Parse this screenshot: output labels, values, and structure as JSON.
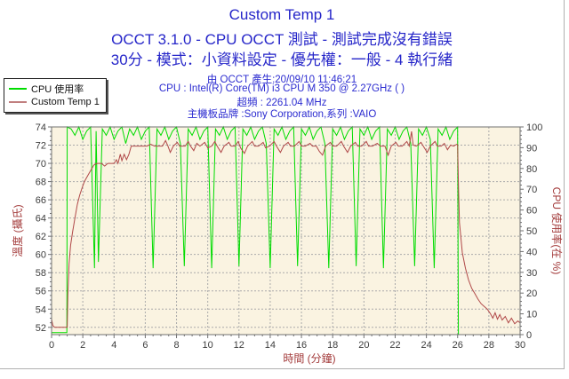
{
  "header": {
    "title": "Custom Temp 1",
    "subtitle1": "OCCT 3.1.0 - CPU OCCT 測試 - 測試完成沒有錯誤",
    "subtitle2": "30分 - 模式：小資料設定 - 優先權：一般 - 4 執行緒",
    "info_lines": {
      "0": "由 OCCT 產生:20/09/10 11:46:21",
      "1": "CPU : Intel(R) Core(TM) i3 CPU M 350 @ 2.27GHz (  )",
      "2": "超頻 : 2261.04 MHz",
      "3": "主機板品牌 :Sony Corporation,系列 :VAIO"
    },
    "title_color": "#2626c9"
  },
  "legend": {
    "items": [
      {
        "label": "CPU 使用率",
        "swatch_color": "#00dc00"
      },
      {
        "label": "Custom Temp 1",
        "swatch_color": "#c17f7f"
      }
    ]
  },
  "chart_data": {
    "type": "line",
    "title": "Custom Temp 1",
    "xlabel": "時間 (分鐘)",
    "ylabel_left": "溫度 (攝氏)",
    "ylabel_right": "CPU 使用率(在 %)",
    "xlim": [
      0,
      30
    ],
    "left_axis_range": [
      51.2,
      74
    ],
    "right_axis_range": [
      0,
      100
    ],
    "x_ticks": [
      0,
      2,
      4,
      6,
      8,
      10,
      12,
      14,
      16,
      18,
      20,
      22,
      24,
      26,
      28,
      30
    ],
    "left_ticks": [
      52,
      54,
      56,
      58,
      60,
      62,
      64,
      66,
      68,
      70,
      72,
      74
    ],
    "right_ticks": [
      0,
      10,
      20,
      30,
      40,
      50,
      60,
      70,
      80,
      90,
      100
    ],
    "grid": "dashed",
    "legend_position": "top-left",
    "colors": {
      "plot_bg": "#faf3e1",
      "grid": "#aaaaaa",
      "axis": "#707070",
      "tick_label": "#3c3c3c",
      "axis_title": "#a33b3b",
      "cpu_line": "#00dc00",
      "temp_line": "#b04848"
    },
    "series": [
      {
        "name": "CPU 使用率",
        "axis": "right",
        "color": "#00dc00",
        "points": [
          [
            0,
            1
          ],
          [
            0.98,
            1
          ],
          [
            1.0,
            100
          ],
          [
            1.25,
            99
          ],
          [
            1.5,
            96
          ],
          [
            1.75,
            100
          ],
          [
            2.0,
            94
          ],
          [
            2.25,
            98
          ],
          [
            2.5,
            100
          ],
          [
            2.75,
            32
          ],
          [
            2.85,
            98
          ],
          [
            3.0,
            35
          ],
          [
            3.25,
            99
          ],
          [
            3.5,
            96
          ],
          [
            3.75,
            100
          ],
          [
            4.0,
            94
          ],
          [
            4.25,
            98
          ],
          [
            4.5,
            100
          ],
          [
            4.75,
            92
          ],
          [
            5.0,
            99
          ],
          [
            5.25,
            96
          ],
          [
            5.5,
            100
          ],
          [
            5.75,
            94
          ],
          [
            6.0,
            98
          ],
          [
            6.25,
            100
          ],
          [
            6.5,
            32
          ],
          [
            6.75,
            99
          ],
          [
            7.0,
            96
          ],
          [
            7.25,
            100
          ],
          [
            7.5,
            94
          ],
          [
            7.75,
            98
          ],
          [
            8.0,
            100
          ],
          [
            8.25,
            92
          ],
          [
            8.5,
            33
          ],
          [
            8.75,
            99
          ],
          [
            9.0,
            96
          ],
          [
            9.25,
            100
          ],
          [
            9.5,
            94
          ],
          [
            9.75,
            98
          ],
          [
            10.0,
            100
          ],
          [
            10.25,
            32
          ],
          [
            10.5,
            99
          ],
          [
            10.75,
            96
          ],
          [
            11.0,
            100
          ],
          [
            11.25,
            94
          ],
          [
            11.5,
            98
          ],
          [
            11.75,
            100
          ],
          [
            12.0,
            33
          ],
          [
            12.25,
            99
          ],
          [
            12.5,
            96
          ],
          [
            12.75,
            100
          ],
          [
            13.0,
            94
          ],
          [
            13.25,
            98
          ],
          [
            13.5,
            100
          ],
          [
            13.75,
            92
          ],
          [
            14.0,
            32
          ],
          [
            14.25,
            99
          ],
          [
            14.5,
            96
          ],
          [
            14.75,
            100
          ],
          [
            15.0,
            94
          ],
          [
            15.25,
            98
          ],
          [
            15.5,
            100
          ],
          [
            15.75,
            33
          ],
          [
            16.0,
            99
          ],
          [
            16.25,
            96
          ],
          [
            16.5,
            100
          ],
          [
            16.75,
            94
          ],
          [
            17.0,
            98
          ],
          [
            17.25,
            100
          ],
          [
            17.5,
            92
          ],
          [
            17.75,
            32
          ],
          [
            18.0,
            99
          ],
          [
            18.25,
            96
          ],
          [
            18.5,
            100
          ],
          [
            18.75,
            94
          ],
          [
            19.0,
            98
          ],
          [
            19.25,
            100
          ],
          [
            19.5,
            33
          ],
          [
            19.75,
            99
          ],
          [
            20.0,
            96
          ],
          [
            20.25,
            100
          ],
          [
            20.5,
            94
          ],
          [
            20.75,
            98
          ],
          [
            21.0,
            100
          ],
          [
            21.25,
            32
          ],
          [
            21.5,
            99
          ],
          [
            21.75,
            96
          ],
          [
            22.0,
            100
          ],
          [
            22.25,
            94
          ],
          [
            22.5,
            98
          ],
          [
            22.75,
            100
          ],
          [
            23.0,
            92
          ],
          [
            23.25,
            33
          ],
          [
            23.5,
            99
          ],
          [
            23.75,
            96
          ],
          [
            24.0,
            100
          ],
          [
            24.25,
            94
          ],
          [
            24.5,
            32
          ],
          [
            24.75,
            99
          ],
          [
            25.0,
            96
          ],
          [
            25.25,
            100
          ],
          [
            25.5,
            94
          ],
          [
            25.75,
            98
          ],
          [
            26.0,
            100
          ],
          [
            26.05,
            0
          ]
        ]
      },
      {
        "name": "Custom Temp 1",
        "axis": "left",
        "color": "#b04848",
        "points": [
          [
            0,
            52.9
          ],
          [
            0.08,
            52.2
          ],
          [
            0.2,
            52
          ],
          [
            1.0,
            52
          ],
          [
            1.04,
            55.5
          ],
          [
            1.12,
            59
          ],
          [
            1.22,
            61
          ],
          [
            1.35,
            62.5
          ],
          [
            1.5,
            64
          ],
          [
            1.65,
            65.5
          ],
          [
            1.8,
            66.5
          ],
          [
            1.95,
            67.3
          ],
          [
            2.1,
            68
          ],
          [
            2.3,
            68.6
          ],
          [
            2.5,
            69.2
          ],
          [
            2.7,
            69.8
          ],
          [
            2.9,
            70
          ],
          [
            3.2,
            70
          ],
          [
            3.4,
            69.7
          ],
          [
            3.6,
            70
          ],
          [
            4.0,
            70
          ],
          [
            4.15,
            70.4
          ],
          [
            4.25,
            70
          ],
          [
            4.4,
            71
          ],
          [
            4.5,
            70.3
          ],
          [
            4.65,
            71
          ],
          [
            4.8,
            70.4
          ],
          [
            4.95,
            71
          ],
          [
            5.1,
            71.9
          ],
          [
            5.6,
            71.9
          ],
          [
            6.1,
            71.9
          ],
          [
            6.35,
            72.1
          ],
          [
            6.6,
            71.9
          ],
          [
            7.1,
            71.9
          ],
          [
            7.3,
            72.5
          ],
          [
            7.45,
            71.9
          ],
          [
            7.6,
            71.2
          ],
          [
            7.8,
            71.9
          ],
          [
            8.05,
            72.3
          ],
          [
            8.2,
            71.9
          ],
          [
            8.55,
            71.9
          ],
          [
            8.75,
            72.4
          ],
          [
            8.9,
            71.9
          ],
          [
            9.1,
            71.4
          ],
          [
            9.3,
            72.2
          ],
          [
            9.5,
            71.9
          ],
          [
            9.8,
            72.3
          ],
          [
            10.0,
            71.7
          ],
          [
            10.25,
            71.9
          ],
          [
            10.45,
            72.4
          ],
          [
            10.6,
            71.9
          ],
          [
            10.85,
            71.2
          ],
          [
            11.05,
            71.9
          ],
          [
            11.35,
            72.3
          ],
          [
            11.5,
            71.9
          ],
          [
            11.75,
            71.9
          ],
          [
            11.95,
            72.4
          ],
          [
            12.1,
            71.7
          ],
          [
            12.35,
            71.1
          ],
          [
            12.55,
            71.9
          ],
          [
            12.85,
            72.4
          ],
          [
            13.0,
            71.9
          ],
          [
            13.25,
            71.9
          ],
          [
            13.55,
            72.3
          ],
          [
            13.7,
            71.7
          ],
          [
            13.95,
            71.9
          ],
          [
            14.25,
            72.4
          ],
          [
            14.4,
            71.9
          ],
          [
            14.65,
            71.2
          ],
          [
            14.85,
            71.9
          ],
          [
            15.15,
            72.3
          ],
          [
            15.3,
            71.9
          ],
          [
            15.55,
            71.9
          ],
          [
            15.85,
            72.4
          ],
          [
            16.0,
            71.9
          ],
          [
            16.25,
            71.9
          ],
          [
            16.55,
            72.2
          ],
          [
            16.7,
            71.9
          ],
          [
            16.95,
            71.9
          ],
          [
            17.15,
            71.3
          ],
          [
            17.35,
            70.9
          ],
          [
            17.55,
            71.9
          ],
          [
            17.85,
            72.3
          ],
          [
            18.0,
            71.9
          ],
          [
            18.25,
            71.9
          ],
          [
            18.55,
            72.4
          ],
          [
            18.7,
            71.9
          ],
          [
            18.95,
            71.2
          ],
          [
            19.15,
            71.9
          ],
          [
            19.45,
            72.3
          ],
          [
            19.6,
            71.9
          ],
          [
            19.85,
            71.9
          ],
          [
            20.15,
            72.4
          ],
          [
            20.3,
            71.9
          ],
          [
            20.55,
            71.9
          ],
          [
            20.85,
            72.2
          ],
          [
            21.05,
            71.9
          ],
          [
            21.35,
            71.9
          ],
          [
            21.55,
            70.9
          ],
          [
            21.75,
            71.9
          ],
          [
            22.05,
            72.3
          ],
          [
            22.2,
            71.9
          ],
          [
            22.45,
            71.9
          ],
          [
            22.75,
            72.4
          ],
          [
            22.9,
            71.9
          ],
          [
            23.05,
            73.5
          ],
          [
            23.15,
            72.0
          ],
          [
            23.35,
            71.9
          ],
          [
            23.65,
            72.3
          ],
          [
            23.8,
            71.9
          ],
          [
            24.05,
            71.2
          ],
          [
            24.25,
            71.9
          ],
          [
            24.55,
            72.4
          ],
          [
            24.7,
            71.9
          ],
          [
            24.95,
            71.9
          ],
          [
            25.15,
            72.2
          ],
          [
            25.35,
            71.5
          ],
          [
            25.55,
            72.0
          ],
          [
            25.75,
            71.9
          ],
          [
            25.95,
            72.1
          ],
          [
            26.0,
            72
          ],
          [
            26.06,
            67
          ],
          [
            26.12,
            63.5
          ],
          [
            26.3,
            60.2
          ],
          [
            26.5,
            58.5
          ],
          [
            26.7,
            57.2
          ],
          [
            26.9,
            56.3
          ],
          [
            27.1,
            55.7
          ],
          [
            27.3,
            55.1
          ],
          [
            27.5,
            54.6
          ],
          [
            27.7,
            54.3
          ],
          [
            27.9,
            54
          ],
          [
            28.1,
            53.5
          ],
          [
            28.25,
            53
          ],
          [
            28.4,
            53.6
          ],
          [
            28.55,
            52.9
          ],
          [
            28.7,
            53.4
          ],
          [
            28.85,
            52.8
          ],
          [
            29.05,
            53.2
          ],
          [
            29.25,
            52.5
          ],
          [
            29.45,
            53
          ],
          [
            29.65,
            52.4
          ],
          [
            29.85,
            52.7
          ],
          [
            30,
            52.5
          ]
        ]
      }
    ]
  }
}
